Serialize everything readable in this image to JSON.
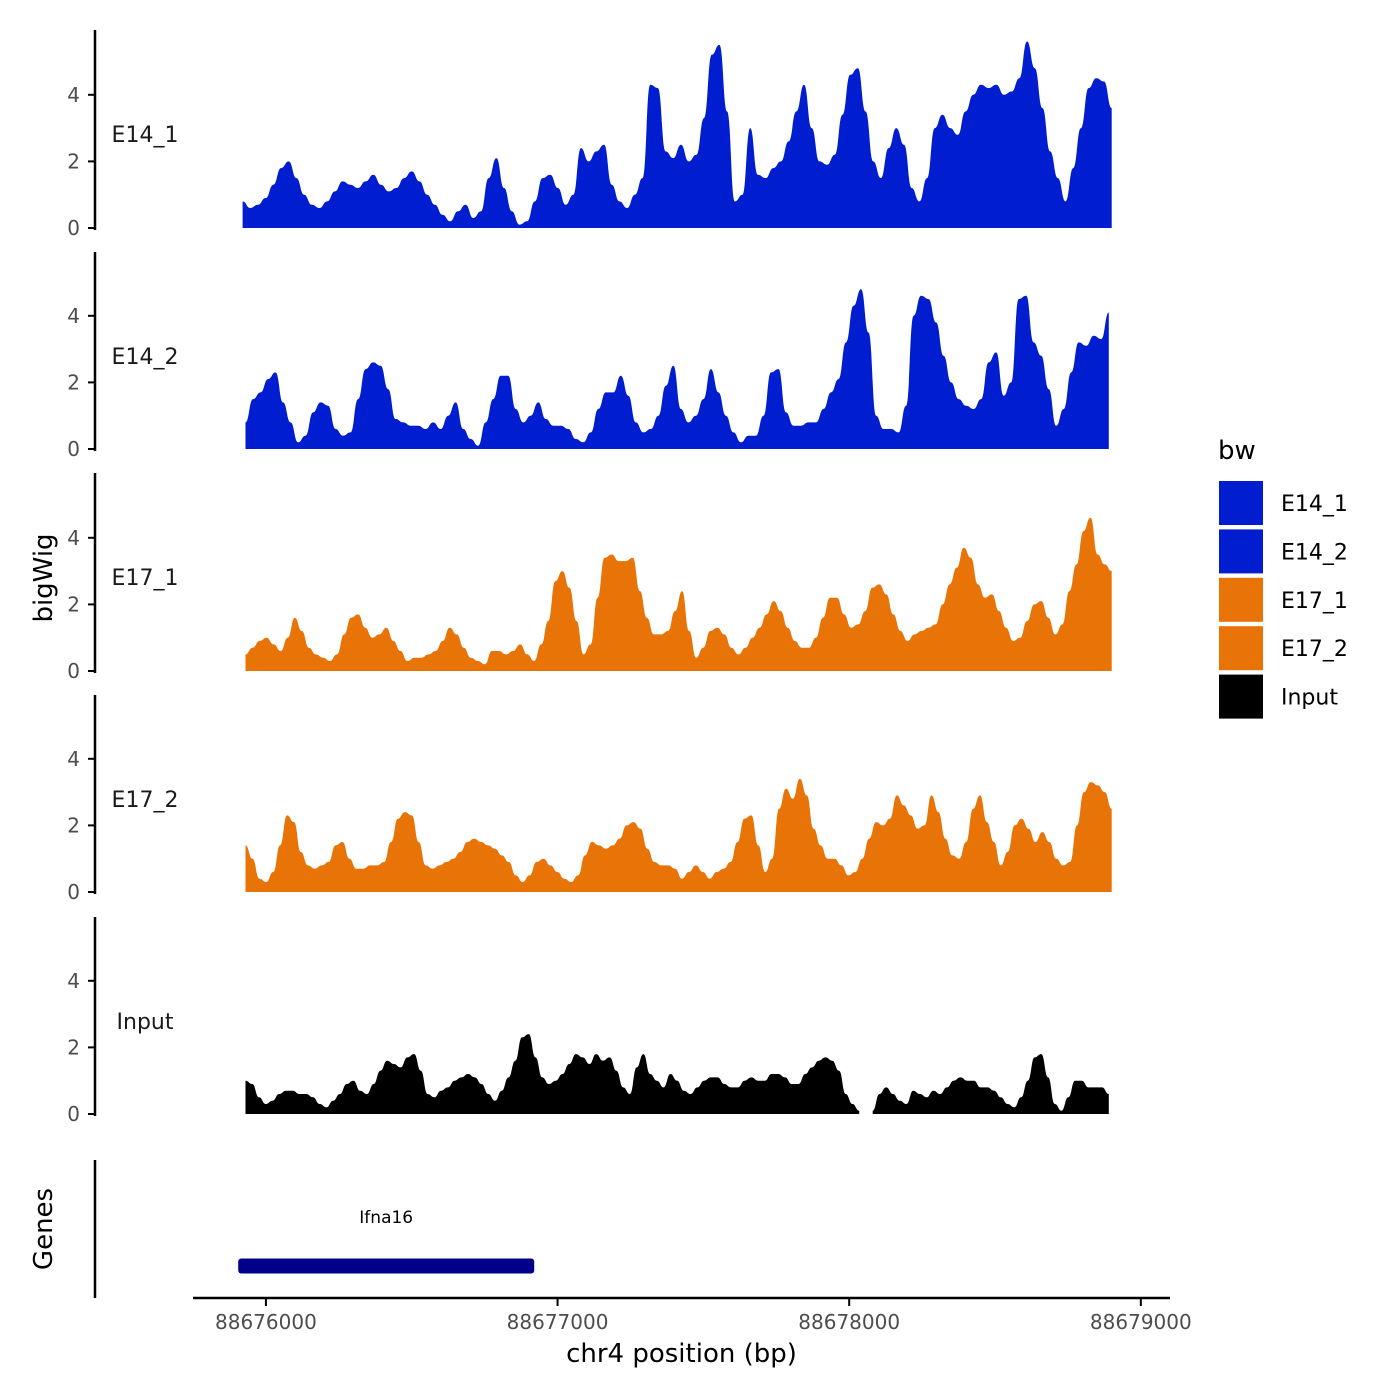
{
  "chart_data": {
    "type": "area",
    "ylabel": "bigWig",
    "xlabel": "chr4 position (bp)",
    "xlim": [
      88675750,
      88679100
    ],
    "ylim": [
      0,
      5.9
    ],
    "x_ticks": [
      88676000,
      88677000,
      88678000,
      88679000
    ],
    "x_tick_labels": [
      "88676000",
      "88677000",
      "88678000",
      "88679000"
    ],
    "y_ticks": [
      0,
      2,
      4
    ],
    "y_tick_labels": [
      "0",
      "2",
      "4"
    ],
    "legend": {
      "title": "bw",
      "position": "right",
      "entries": [
        {
          "label": "E14_1",
          "color": "#001ECF"
        },
        {
          "label": "E14_2",
          "color": "#001ECF"
        },
        {
          "label": "E17_1",
          "color": "#E87306"
        },
        {
          "label": "E17_2",
          "color": "#E87306"
        },
        {
          "label": "Input",
          "color": "#000000"
        }
      ]
    },
    "tracks": [
      {
        "name": "E14_1",
        "color": "#001ECF",
        "x_start": 88675920,
        "x_end": 88678900,
        "values": [
          0.8,
          0.6,
          0.7,
          0.9,
          1.3,
          1.8,
          2.0,
          1.5,
          1.0,
          0.7,
          0.6,
          0.8,
          1.1,
          1.4,
          1.3,
          1.2,
          1.4,
          1.6,
          1.3,
          1.1,
          1.2,
          1.5,
          1.7,
          1.4,
          1.0,
          0.7,
          0.4,
          0.2,
          0.5,
          0.7,
          0.3,
          0.5,
          1.5,
          2.1,
          1.2,
          0.5,
          0.1,
          0.2,
          0.8,
          1.5,
          1.6,
          1.2,
          0.7,
          1.0,
          2.4,
          2.0,
          2.3,
          2.5,
          1.3,
          0.8,
          0.6,
          1.0,
          1.5,
          4.3,
          4.2,
          2.3,
          2.1,
          2.5,
          2.0,
          2.2,
          3.3,
          5.2,
          5.5,
          3.5,
          0.8,
          1.0,
          3.0,
          1.6,
          1.5,
          1.8,
          2.0,
          2.6,
          3.5,
          4.3,
          3.0,
          2.0,
          1.9,
          2.2,
          3.4,
          4.6,
          4.8,
          3.5,
          2.0,
          1.5,
          2.4,
          3.0,
          2.5,
          1.2,
          0.8,
          1.5,
          3.0,
          3.4,
          3.0,
          2.8,
          3.5,
          4.0,
          4.3,
          4.2,
          4.3,
          4.0,
          4.1,
          4.5,
          5.6,
          4.8,
          3.6,
          2.3,
          1.5,
          0.8,
          1.8,
          3.0,
          4.2,
          4.5,
          4.4,
          3.6
        ]
      },
      {
        "name": "E14_2",
        "color": "#001ECF",
        "x_start": 88675930,
        "x_end": 88678890,
        "values": [
          0.8,
          1.5,
          1.7,
          2.1,
          2.3,
          1.4,
          0.8,
          0.2,
          0.4,
          1.1,
          1.4,
          1.3,
          0.6,
          0.4,
          0.5,
          1.5,
          2.4,
          2.6,
          2.5,
          1.8,
          0.9,
          0.8,
          0.7,
          0.7,
          0.6,
          0.8,
          0.6,
          1.0,
          1.4,
          0.6,
          0.3,
          0.1,
          0.8,
          1.5,
          2.2,
          2.2,
          1.2,
          0.8,
          1.0,
          1.4,
          0.9,
          0.7,
          0.7,
          0.6,
          0.3,
          0.2,
          0.5,
          1.2,
          1.7,
          1.7,
          2.2,
          1.6,
          0.8,
          0.5,
          0.6,
          1.0,
          1.9,
          2.5,
          1.2,
          0.8,
          1.0,
          1.5,
          2.4,
          1.7,
          1.0,
          0.5,
          0.2,
          0.4,
          0.4,
          1.0,
          2.3,
          2.4,
          1.1,
          0.7,
          0.7,
          0.8,
          0.8,
          1.2,
          1.7,
          2.1,
          3.2,
          4.3,
          4.8,
          3.5,
          1.0,
          0.6,
          0.6,
          0.5,
          1.3,
          4.0,
          4.6,
          4.5,
          3.8,
          2.8,
          2.0,
          1.5,
          1.3,
          1.2,
          1.5,
          2.6,
          2.9,
          1.6,
          2.0,
          4.5,
          4.6,
          3.2,
          2.8,
          1.8,
          0.7,
          1.2,
          2.3,
          3.2,
          3.1,
          3.4,
          3.3,
          4.1
        ]
      },
      {
        "name": "E17_1",
        "color": "#E87306",
        "x_start": 88675930,
        "x_end": 88678900,
        "values": [
          0.5,
          0.7,
          0.9,
          1.0,
          0.8,
          0.6,
          1.0,
          1.6,
          1.2,
          0.7,
          0.5,
          0.4,
          0.3,
          0.5,
          1.1,
          1.6,
          1.7,
          1.3,
          1.0,
          1.1,
          1.3,
          0.9,
          0.6,
          0.3,
          0.4,
          0.4,
          0.5,
          0.6,
          0.9,
          1.3,
          1.1,
          0.7,
          0.4,
          0.3,
          0.2,
          0.6,
          0.6,
          0.5,
          0.6,
          0.8,
          0.5,
          0.3,
          0.8,
          1.5,
          2.7,
          3.0,
          2.5,
          1.5,
          0.5,
          0.8,
          2.2,
          3.4,
          3.5,
          3.3,
          3.3,
          3.4,
          2.4,
          1.6,
          1.1,
          1.1,
          1.2,
          1.8,
          2.4,
          1.2,
          0.4,
          0.7,
          1.2,
          1.3,
          1.1,
          0.7,
          0.5,
          0.7,
          1.0,
          1.3,
          1.7,
          2.1,
          1.8,
          1.3,
          0.9,
          0.7,
          0.7,
          1.0,
          1.6,
          2.2,
          2.2,
          1.7,
          1.3,
          1.4,
          1.8,
          2.5,
          2.6,
          2.3,
          1.7,
          1.2,
          0.9,
          1.1,
          1.2,
          1.3,
          1.4,
          2.0,
          2.6,
          3.1,
          3.7,
          3.4,
          2.6,
          2.2,
          2.3,
          1.8,
          1.3,
          0.9,
          1.0,
          1.5,
          2.0,
          2.1,
          1.6,
          1.1,
          1.4,
          2.4,
          3.2,
          4.2,
          4.6,
          3.5,
          3.2,
          3.0
        ]
      },
      {
        "name": "E17_2",
        "color": "#E87306",
        "x_start": 88675930,
        "x_end": 88678900,
        "values": [
          1.4,
          1.0,
          0.4,
          0.3,
          0.6,
          1.4,
          2.3,
          2.1,
          1.2,
          0.8,
          0.7,
          0.8,
          0.9,
          1.4,
          1.5,
          1.0,
          0.7,
          0.7,
          0.8,
          0.8,
          0.9,
          1.5,
          2.2,
          2.4,
          2.3,
          1.5,
          0.8,
          0.7,
          0.8,
          0.9,
          1.0,
          1.2,
          1.5,
          1.6,
          1.5,
          1.4,
          1.3,
          1.1,
          0.9,
          0.5,
          0.3,
          0.5,
          0.9,
          1.0,
          0.8,
          0.6,
          0.4,
          0.3,
          0.5,
          1.1,
          1.5,
          1.4,
          1.3,
          1.4,
          1.6,
          2.0,
          2.1,
          1.9,
          1.3,
          0.9,
          0.8,
          0.8,
          0.7,
          0.4,
          0.6,
          0.8,
          0.6,
          0.4,
          0.6,
          0.7,
          0.9,
          1.5,
          2.2,
          2.3,
          1.4,
          0.6,
          1.0,
          2.5,
          3.1,
          2.8,
          3.4,
          2.9,
          1.9,
          1.4,
          1.0,
          1.0,
          0.8,
          0.5,
          0.6,
          1.0,
          1.6,
          2.1,
          2.0,
          2.2,
          2.9,
          2.6,
          2.3,
          1.9,
          2.0,
          2.9,
          2.4,
          1.6,
          1.1,
          1.0,
          1.5,
          2.5,
          2.9,
          2.1,
          1.5,
          0.8,
          1.2,
          2.0,
          2.2,
          1.9,
          1.5,
          1.8,
          1.5,
          1.0,
          0.8,
          0.9,
          2.0,
          3.0,
          3.3,
          3.2,
          3.0,
          2.5
        ]
      },
      {
        "name": "Input",
        "color": "#000000",
        "x_start": 88675930,
        "x_end": 88678890,
        "values": [
          1.0,
          0.9,
          0.5,
          0.3,
          0.4,
          0.6,
          0.7,
          0.7,
          0.6,
          0.6,
          0.5,
          0.3,
          0.2,
          0.4,
          0.6,
          0.9,
          1.0,
          0.7,
          0.6,
          0.9,
          1.3,
          1.6,
          1.5,
          1.4,
          1.7,
          1.8,
          1.3,
          0.6,
          0.5,
          0.7,
          0.8,
          1.0,
          1.1,
          1.2,
          1.1,
          0.9,
          0.6,
          0.4,
          0.7,
          1.1,
          1.6,
          2.3,
          2.4,
          1.7,
          1.1,
          0.9,
          1.0,
          1.2,
          1.5,
          1.8,
          1.7,
          1.5,
          1.8,
          1.6,
          1.7,
          1.3,
          0.8,
          0.6,
          1.4,
          1.8,
          1.2,
          1.0,
          0.8,
          1.2,
          1.0,
          0.7,
          0.6,
          0.8,
          1.0,
          1.1,
          1.1,
          0.9,
          0.8,
          0.8,
          1.0,
          1.1,
          1.0,
          1.0,
          1.2,
          1.2,
          1.1,
          0.9,
          0.9,
          1.2,
          1.4,
          1.6,
          1.7,
          1.6,
          1.3,
          0.6,
          0.3,
          0.1,
          null,
          0.1,
          0.6,
          0.8,
          0.6,
          0.4,
          0.3,
          0.7,
          0.6,
          0.5,
          0.7,
          0.6,
          0.8,
          1.0,
          1.1,
          1.0,
          1.0,
          0.8,
          0.8,
          0.7,
          0.5,
          0.3,
          0.2,
          0.5,
          1.0,
          1.7,
          1.8,
          1.1,
          0.3,
          0.1,
          0.5,
          1.0,
          1.0,
          0.8,
          0.8,
          0.8,
          0.6
        ]
      }
    ],
    "genes_panel": {
      "ylabel": "Genes",
      "genes": [
        {
          "name": "Ifna16",
          "start": 88675905,
          "end": 88676920,
          "color": "#00008B"
        }
      ]
    }
  }
}
